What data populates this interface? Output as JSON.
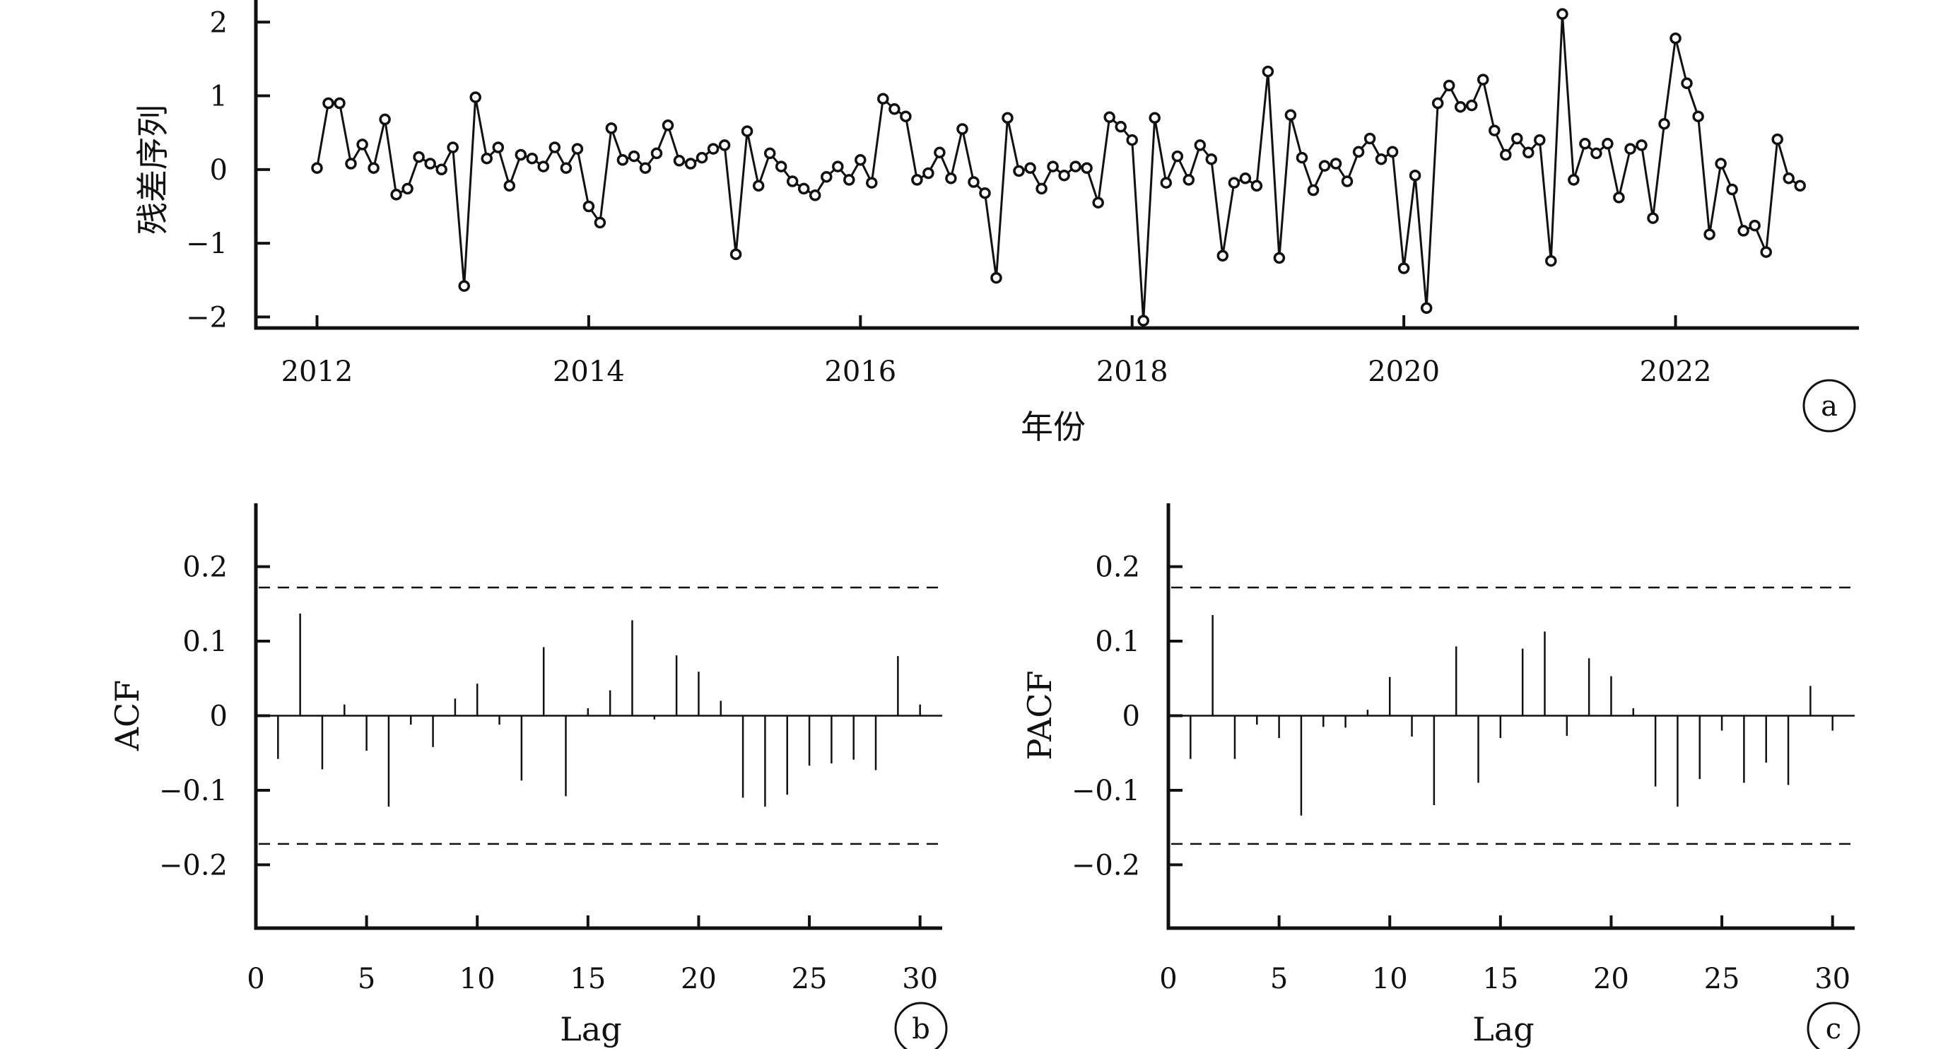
{
  "chart_data": [
    {
      "type": "line",
      "panel": "a",
      "xlabel": "年份",
      "ylabel": "残差序列",
      "xlim": [
        2011.55,
        2023.35
      ],
      "ylim": [
        -2.15,
        2.3
      ],
      "xticks": [
        2012,
        2014,
        2016,
        2018,
        2020,
        2022
      ],
      "xtick_labels": [
        "2012",
        "2014",
        "2016",
        "2018",
        "2020",
        "2022"
      ],
      "yticks": [
        -2,
        -1,
        0,
        1,
        2
      ],
      "ytick_labels": [
        "−2",
        "−1",
        "0",
        "1",
        "2"
      ],
      "grid": false,
      "x_start": 2012,
      "x_step_months": 1,
      "values": [
        0.02,
        0.9,
        0.9,
        0.08,
        0.34,
        0.02,
        0.68,
        -0.34,
        -0.26,
        0.17,
        0.08,
        0.0,
        0.3,
        -1.58,
        0.98,
        0.15,
        0.3,
        -0.22,
        0.2,
        0.15,
        0.04,
        0.3,
        0.02,
        0.28,
        -0.5,
        -0.72,
        0.56,
        0.13,
        0.18,
        0.02,
        0.22,
        0.6,
        0.12,
        0.08,
        0.16,
        0.28,
        0.33,
        -1.15,
        0.52,
        -0.22,
        0.22,
        0.04,
        -0.16,
        -0.26,
        -0.35,
        -0.1,
        0.04,
        -0.14,
        0.13,
        -0.18,
        0.96,
        0.82,
        0.72,
        -0.14,
        -0.05,
        0.23,
        -0.12,
        0.55,
        -0.17,
        -0.32,
        -1.47,
        0.7,
        -0.02,
        0.02,
        -0.26,
        0.04,
        -0.08,
        0.04,
        0.02,
        -0.45,
        0.71,
        0.58,
        0.4,
        -2.05,
        0.7,
        -0.18,
        0.18,
        -0.14,
        0.33,
        0.14,
        -1.17,
        -0.18,
        -0.12,
        -0.22,
        1.33,
        -1.2,
        0.74,
        0.16,
        -0.28,
        0.05,
        0.08,
        -0.16,
        0.24,
        0.42,
        0.14,
        0.24,
        -1.34,
        -0.08,
        -1.88,
        0.9,
        1.14,
        0.85,
        0.87,
        1.22,
        0.53,
        0.2,
        0.42,
        0.23,
        0.4,
        -1.24,
        2.11,
        -0.14,
        0.35,
        0.22,
        0.35,
        -0.38,
        0.28,
        0.33,
        -0.66,
        0.62,
        1.78,
        1.17,
        0.72,
        -0.88,
        0.08,
        -0.27,
        -0.83,
        -0.76,
        -1.12,
        0.41,
        -0.12,
        -0.22
      ]
    },
    {
      "type": "bar",
      "panel": "b",
      "xlabel": "Lag",
      "ylabel": "ACF",
      "xlim": [
        0,
        31
      ],
      "ylim": [
        -0.285,
        0.285
      ],
      "xticks": [
        0,
        5,
        10,
        15,
        20,
        25,
        30
      ],
      "xtick_labels": [
        "0",
        "5",
        "10",
        "15",
        "20",
        "25",
        "30"
      ],
      "yticks": [
        -0.2,
        -0.1,
        0,
        0.1,
        0.2
      ],
      "ytick_labels": [
        "−0.2",
        "−0.1",
        "0",
        "0.1",
        "0.2"
      ],
      "confidence_bound": 0.172,
      "grid": false,
      "lags": [
        1,
        2,
        3,
        4,
        5,
        6,
        7,
        8,
        9,
        10,
        11,
        12,
        13,
        14,
        15,
        16,
        17,
        18,
        19,
        20,
        21,
        22,
        23,
        24,
        25,
        26,
        27,
        28,
        29,
        30
      ],
      "values": [
        -0.058,
        0.137,
        -0.072,
        0.015,
        -0.047,
        -0.122,
        -0.012,
        -0.042,
        0.023,
        0.043,
        -0.012,
        -0.087,
        0.092,
        -0.108,
        0.01,
        0.034,
        0.128,
        -0.005,
        0.081,
        0.059,
        0.02,
        -0.11,
        -0.122,
        -0.106,
        -0.067,
        -0.064,
        -0.059,
        -0.073,
        0.08,
        0.015
      ]
    },
    {
      "type": "bar",
      "panel": "c",
      "xlabel": "Lag",
      "ylabel": "PACF",
      "xlim": [
        0,
        31
      ],
      "ylim": [
        -0.285,
        0.285
      ],
      "xticks": [
        0,
        5,
        10,
        15,
        20,
        25,
        30
      ],
      "xtick_labels": [
        "0",
        "5",
        "10",
        "15",
        "20",
        "25",
        "30"
      ],
      "yticks": [
        -0.2,
        -0.1,
        0,
        0.1,
        0.2
      ],
      "ytick_labels": [
        "−0.2",
        "−0.1",
        "0",
        "0.1",
        "0.2"
      ],
      "confidence_bound": 0.172,
      "grid": false,
      "lags": [
        1,
        2,
        3,
        4,
        5,
        6,
        7,
        8,
        9,
        10,
        11,
        12,
        13,
        14,
        15,
        16,
        17,
        18,
        19,
        20,
        21,
        22,
        23,
        24,
        25,
        26,
        27,
        28,
        29,
        30
      ],
      "values": [
        -0.058,
        0.135,
        -0.058,
        -0.012,
        -0.03,
        -0.134,
        -0.015,
        -0.016,
        0.008,
        0.052,
        -0.028,
        -0.12,
        0.093,
        -0.09,
        -0.03,
        0.09,
        0.113,
        -0.027,
        0.077,
        0.053,
        0.01,
        -0.095,
        -0.122,
        -0.085,
        -0.02,
        -0.09,
        -0.063,
        -0.093,
        0.04,
        -0.02
      ]
    }
  ]
}
